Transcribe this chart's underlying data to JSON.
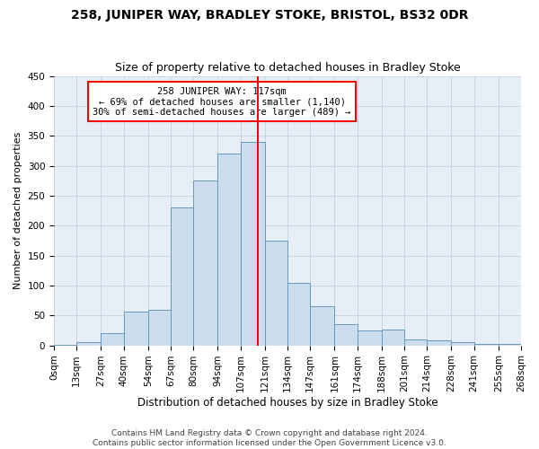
{
  "title": "258, JUNIPER WAY, BRADLEY STOKE, BRISTOL, BS32 0DR",
  "subtitle": "Size of property relative to detached houses in Bradley Stoke",
  "xlabel": "Distribution of detached houses by size in Bradley Stoke",
  "ylabel": "Number of detached properties",
  "bar_color": "#ccdded",
  "bar_edge_color": "#6699bb",
  "background_color": "#e8eef8",
  "grid_color": "#bbccdd",
  "annotation_text": "258 JUNIPER WAY: 117sqm\n← 69% of detached houses are smaller (1,140)\n30% of semi-detached houses are larger (489) →",
  "annotation_box_color": "white",
  "annotation_box_edge_color": "red",
  "vline_x": 117,
  "vline_color": "red",
  "bin_edges": [
    0,
    13,
    27,
    40,
    54,
    67,
    80,
    94,
    107,
    121,
    134,
    147,
    161,
    174,
    188,
    201,
    214,
    228,
    241,
    255,
    268
  ],
  "bin_labels": [
    "0sqm",
    "13sqm",
    "27sqm",
    "40sqm",
    "54sqm",
    "67sqm",
    "80sqm",
    "94sqm",
    "107sqm",
    "121sqm",
    "134sqm",
    "147sqm",
    "161sqm",
    "174sqm",
    "188sqm",
    "201sqm",
    "214sqm",
    "228sqm",
    "241sqm",
    "255sqm",
    "268sqm"
  ],
  "bar_heights": [
    1,
    5,
    20,
    57,
    60,
    230,
    275,
    320,
    340,
    175,
    105,
    65,
    35,
    25,
    27,
    10,
    8,
    5,
    2,
    2
  ],
  "ylim": [
    0,
    450
  ],
  "yticks": [
    0,
    50,
    100,
    150,
    200,
    250,
    300,
    350,
    400,
    450
  ],
  "footer_text": "Contains HM Land Registry data © Crown copyright and database right 2024.\nContains public sector information licensed under the Open Government Licence v3.0.",
  "title_fontsize": 10,
  "subtitle_fontsize": 9,
  "xlabel_fontsize": 8.5,
  "ylabel_fontsize": 8,
  "tick_fontsize": 7.5,
  "footer_fontsize": 6.5,
  "annot_fontsize": 7.5
}
